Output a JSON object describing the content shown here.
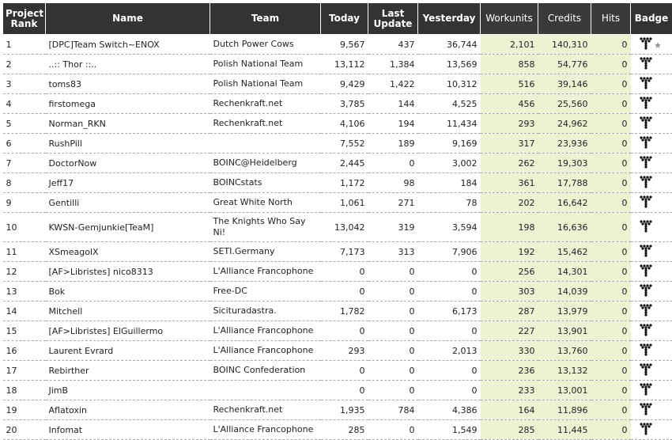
{
  "table": {
    "headers": [
      "Project Rank",
      "Name",
      "Team",
      "Today",
      "Last Update",
      "Yesterday",
      "Workunits",
      "Credits",
      "Hits",
      "Badge"
    ],
    "rows": [
      [
        "1",
        "[DPC]Team Switch~ENOX",
        "Dutch Power Cows",
        "9,567",
        "437",
        "36,744",
        "2,101",
        "140,310",
        "0"
      ],
      [
        "2",
        "..:: Thor ::..",
        "Polish National Team",
        "13,112",
        "1,384",
        "13,569",
        "858",
        "54,776",
        "0"
      ],
      [
        "3",
        "toms83",
        "Polish National Team",
        "9,429",
        "1,422",
        "10,312",
        "516",
        "39,146",
        "0"
      ],
      [
        "4",
        "firstomega",
        "Rechenkraft.net",
        "3,785",
        "144",
        "4,525",
        "456",
        "25,560",
        "0"
      ],
      [
        "5",
        "Norman_RKN",
        "Rechenkraft.net",
        "4,106",
        "194",
        "11,434",
        "293",
        "24,962",
        "0"
      ],
      [
        "6",
        "RushPill",
        null,
        "7,552",
        "189",
        "9,169",
        "317",
        "23,936",
        "0"
      ],
      [
        "7",
        "DoctorNow",
        "BOINC@Heidelberg",
        "2,445",
        "0",
        "3,002",
        "262",
        "19,303",
        "0"
      ],
      [
        "8",
        "Jeff17",
        "BOINCstats",
        "1,172",
        "98",
        "184",
        "361",
        "17,788",
        "0"
      ],
      [
        "9",
        "Gentilli",
        "Great White North",
        "1,061",
        "271",
        "78",
        "202",
        "16,642",
        "0"
      ],
      [
        "10",
        "KWSN-Gemjunkie[TeaM]",
        "The Knights Who Say Ni!",
        "13,042",
        "319",
        "3,594",
        "198",
        "16,636",
        "0"
      ],
      [
        "11",
        "XSmeagolX",
        "SETI.Germany",
        "7,173",
        "313",
        "7,906",
        "192",
        "15,462",
        "0"
      ],
      [
        "12",
        "[AF>Libristes] nico8313",
        "L'Alliance Francophone",
        "0",
        "0",
        "0",
        "256",
        "14,301",
        "0"
      ],
      [
        "13",
        "Bok",
        "Free-DC",
        "0",
        "0",
        "0",
        "303",
        "14,039",
        "0"
      ],
      [
        "14",
        "Mitchell",
        "Sicituradastra.",
        "1,782",
        "0",
        "6,173",
        "287",
        "13,979",
        "0"
      ],
      [
        "15",
        "[AF>Libristes] ElGuillermo",
        "L'Alliance Francophone",
        "0",
        "0",
        "0",
        "227",
        "13,901",
        "0"
      ],
      [
        "16",
        "Laurent Evrard",
        "L'Alliance Francophone",
        "293",
        "0",
        "2,013",
        "330",
        "13,760",
        "0"
      ],
      [
        "17",
        "Rebirther",
        "BOINC Confederation",
        "0",
        "0",
        "0",
        "236",
        "13,132",
        "0"
      ],
      [
        "18",
        "JimB",
        null,
        "0",
        "0",
        "0",
        "233",
        "13,001",
        "0"
      ],
      [
        "19",
        "Aflatoxin",
        "Rechenkraft.net",
        "1,935",
        "784",
        "4,386",
        "164",
        "11,896",
        "0"
      ],
      [
        "20",
        "Infomat",
        "L'Alliance Francophone",
        "285",
        "0",
        "1,549",
        "285",
        "11,445",
        "0"
      ]
    ]
  }
}
